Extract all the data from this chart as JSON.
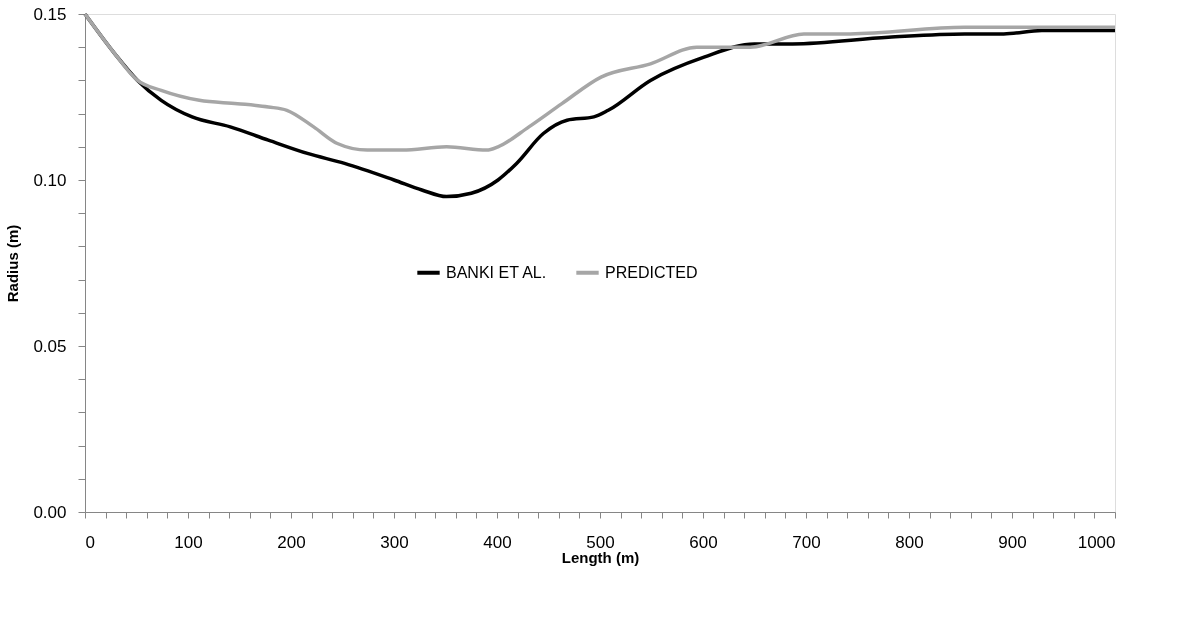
{
  "chart_data": {
    "type": "line",
    "xlabel": "Length (m)",
    "ylabel": "Radius (m)",
    "xlim": [
      0,
      1000
    ],
    "ylim": [
      0,
      0.15
    ],
    "xticks": [
      0,
      {
        "value": 20,
        "label": null
      },
      {
        "value": 40,
        "label": null
      },
      {
        "value": 60,
        "label": null
      },
      {
        "value": 80,
        "label": null
      },
      100,
      {
        "value": 120,
        "label": null
      },
      {
        "value": 140,
        "label": null
      },
      {
        "value": 160,
        "label": null
      },
      {
        "value": 180,
        "label": null
      },
      200,
      {
        "value": 220,
        "label": null
      },
      {
        "value": 240,
        "label": null
      },
      {
        "value": 260,
        "label": null
      },
      {
        "value": 280,
        "label": null
      },
      300,
      {
        "value": 320,
        "label": null
      },
      {
        "value": 340,
        "label": null
      },
      {
        "value": 360,
        "label": null
      },
      {
        "value": 380,
        "label": null
      },
      400,
      {
        "value": 420,
        "label": null
      },
      {
        "value": 440,
        "label": null
      },
      {
        "value": 460,
        "label": null
      },
      {
        "value": 480,
        "label": null
      },
      500,
      {
        "value": 520,
        "label": null
      },
      {
        "value": 540,
        "label": null
      },
      {
        "value": 560,
        "label": null
      },
      {
        "value": 580,
        "label": null
      },
      600,
      {
        "value": 620,
        "label": null
      },
      {
        "value": 640,
        "label": null
      },
      {
        "value": 660,
        "label": null
      },
      {
        "value": 680,
        "label": null
      },
      700,
      {
        "value": 720,
        "label": null
      },
      {
        "value": 740,
        "label": null
      },
      {
        "value": 760,
        "label": null
      },
      {
        "value": 780,
        "label": null
      },
      800,
      {
        "value": 820,
        "label": null
      },
      {
        "value": 840,
        "label": null
      },
      {
        "value": 860,
        "label": null
      },
      {
        "value": 880,
        "label": null
      },
      900,
      {
        "value": 920,
        "label": null
      },
      {
        "value": 940,
        "label": null
      },
      {
        "value": 960,
        "label": null
      },
      {
        "value": 980,
        "label": null
      },
      1000
    ],
    "yticks": [
      {
        "value": 0,
        "label": "0.00"
      },
      {
        "value": 0.01,
        "label": null
      },
      {
        "value": 0.02,
        "label": null
      },
      {
        "value": 0.03,
        "label": null
      },
      {
        "value": 0.04,
        "label": null
      },
      {
        "value": 0.05,
        "label": "0.05"
      },
      {
        "value": 0.06,
        "label": null
      },
      {
        "value": 0.07,
        "label": null
      },
      {
        "value": 0.08,
        "label": null
      },
      {
        "value": 0.09,
        "label": null
      },
      {
        "value": 0.1,
        "label": "0.10"
      },
      {
        "value": 0.11,
        "label": null
      },
      {
        "value": 0.12,
        "label": null
      },
      {
        "value": 0.13,
        "label": null
      },
      {
        "value": 0.14,
        "label": null
      },
      {
        "value": 0.15,
        "label": "0.15"
      }
    ],
    "grid": false,
    "legend": "center",
    "marker": "none",
    "line_style": "solid",
    "series": [
      {
        "name": "BANKI ET AL.",
        "color": "#000000",
        "x": [
          0,
          29,
          51,
          74,
          104,
          141,
          178,
          216,
          252,
          300,
          327,
          351,
          375,
          401,
          419,
          445,
          468,
          494,
          508,
          549,
          601,
          650,
          687,
          780,
          854,
          892,
          929,
          1000
        ],
        "values": [
          0.15,
          0.138,
          0.13,
          0.124,
          0.119,
          0.116,
          0.112,
          0.108,
          0.105,
          0.1,
          0.097,
          0.095,
          0.096,
          0.1,
          0.105,
          0.114,
          0.118,
          0.119,
          0.121,
          0.13,
          0.137,
          0.141,
          0.141,
          0.143,
          0.144,
          0.144,
          0.145,
          0.145
        ]
      },
      {
        "name": "PREDICTED",
        "color": "#a6a6a6",
        "x": [
          0,
          29,
          51,
          74,
          111,
          148,
          178,
          196,
          222,
          245,
          274,
          308,
          351,
          390,
          401,
          431,
          463,
          501,
          549,
          594,
          646,
          698,
          743,
          854,
          910,
          958,
          1000
        ],
        "values": [
          0.15,
          0.138,
          0.13,
          0.127,
          0.124,
          0.123,
          0.122,
          0.121,
          0.116,
          0.111,
          0.109,
          0.109,
          0.11,
          0.109,
          0.11,
          0.116,
          0.123,
          0.131,
          0.135,
          0.14,
          0.14,
          0.144,
          0.144,
          0.146,
          0.146,
          0.146,
          0.146
        ]
      }
    ]
  }
}
